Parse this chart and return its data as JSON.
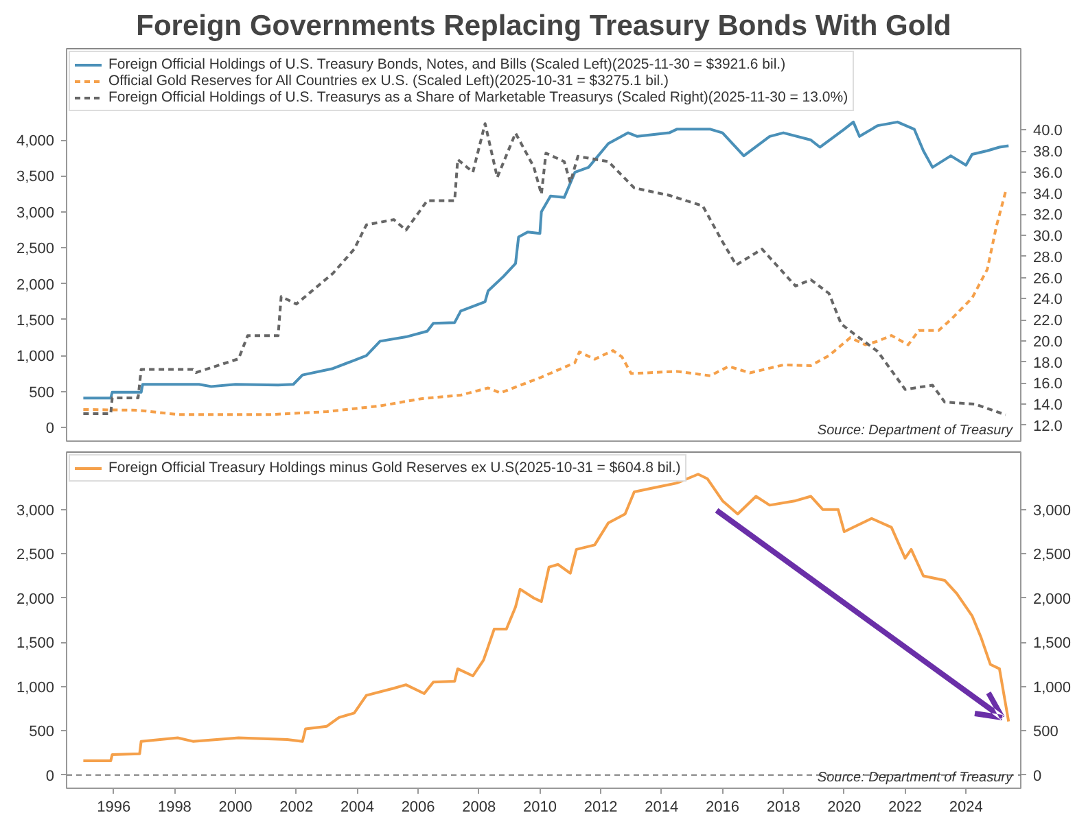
{
  "chart_data": [
    {
      "type": "line",
      "title": "Foreign Governments Replacing Treasury Bonds With Gold",
      "xlim": [
        1994.45,
        2025.8
      ],
      "ylim": [
        -190,
        5270
      ],
      "y2lim": [
        10.5,
        47.7
      ],
      "yticks": [
        0,
        500,
        {
          "value": 1000,
          "label": "1,000"
        },
        {
          "value": 1500,
          "label": "1,500"
        },
        {
          "value": 2000,
          "label": "2,000"
        },
        {
          "value": 2500,
          "label": "2,500"
        },
        {
          "value": 3000,
          "label": "3,000"
        },
        {
          "value": 3500,
          "label": "3,500"
        },
        {
          "value": 4000,
          "label": "4,000"
        }
      ],
      "y2ticks": [
        {
          "value": 12,
          "label": "12.0"
        },
        {
          "value": 14,
          "label": "14.0"
        },
        {
          "value": 16,
          "label": "16.0"
        },
        {
          "value": 18,
          "label": "18.0"
        },
        {
          "value": 20,
          "label": "20.0"
        },
        {
          "value": 22,
          "label": "22.0"
        },
        {
          "value": 24,
          "label": "24.0"
        },
        {
          "value": 26,
          "label": "26.0"
        },
        {
          "value": 28,
          "label": "28.0"
        },
        {
          "value": 30,
          "label": "30.0"
        },
        {
          "value": 32,
          "label": "32.0"
        },
        {
          "value": 34,
          "label": "34.0"
        },
        {
          "value": 36,
          "label": "36.0"
        },
        {
          "value": 38,
          "label": "38.0"
        },
        {
          "value": 40,
          "label": "40.0"
        }
      ],
      "tick_labels": "y",
      "grid": false,
      "legend": "top left",
      "annotations": [
        "Source: Department of Treasury"
      ],
      "series": [
        {
          "name": "Foreign Official Holdings of U.S. Treasury Bonds, Notes, and Bills (Scaled Left)(2025-11-30 = $3921.6 bil.)",
          "color": "#4a90b8",
          "line_style": "solid",
          "x": [
            1995.0,
            1995.9,
            1995.95,
            1996.9,
            1996.95,
            1998.8,
            1999.2,
            2000.0,
            2001.4,
            2001.9,
            2002.2,
            2003.2,
            2004.3,
            2004.75,
            2005.6,
            2006.3,
            2006.5,
            2007.2,
            2007.4,
            2008.2,
            2008.3,
            2008.8,
            2009.2,
            2009.3,
            2009.6,
            2010.0,
            2010.05,
            2010.35,
            2010.8,
            2011.15,
            2011.6,
            2012.25,
            2012.9,
            2013.2,
            2014.25,
            2014.5,
            2015.6,
            2016.0,
            2016.7,
            2017.55,
            2018.0,
            2018.9,
            2019.2,
            2020.0,
            2020.3,
            2020.5,
            2021.1,
            2021.75,
            2022.3,
            2022.6,
            2022.9,
            2023.5,
            2024.0,
            2024.2,
            2024.7,
            2025.1,
            2025.4
          ],
          "values": [
            410,
            410,
            490,
            490,
            600,
            600,
            570,
            600,
            590,
            600,
            730,
            820,
            1000,
            1200,
            1260,
            1340,
            1450,
            1460,
            1620,
            1750,
            1900,
            2100,
            2280,
            2650,
            2720,
            2700,
            3000,
            3220,
            3200,
            3550,
            3620,
            3950,
            4100,
            4050,
            4100,
            4150,
            4150,
            4100,
            3780,
            4050,
            4100,
            4000,
            3900,
            4150,
            4250,
            4050,
            4200,
            4250,
            4150,
            3850,
            3620,
            3780,
            3650,
            3800,
            3850,
            3900,
            3920
          ]
        },
        {
          "name": "Official Gold Reserves for All Countries ex U.S. (Scaled Left)(2025-10-31 = $3275.1 bil.)",
          "color": "#f5a04a",
          "line_style": "dashed",
          "x": [
            1995.0,
            1996.8,
            1998.1,
            2001.2,
            2003.0,
            2004.75,
            2006.1,
            2007.4,
            2008.3,
            2008.7,
            2010.05,
            2011.15,
            2011.3,
            2011.8,
            2012.4,
            2012.7,
            2013.0,
            2014.5,
            2015.6,
            2016.2,
            2016.9,
            2018.0,
            2018.9,
            2019.5,
            2020.2,
            2020.7,
            2021.1,
            2021.55,
            2022.1,
            2022.45,
            2023.1,
            2023.5,
            2024.2,
            2024.7,
            2025.0,
            2025.3
          ],
          "values": [
            250,
            240,
            180,
            180,
            220,
            300,
            400,
            450,
            550,
            480,
            700,
            900,
            1050,
            950,
            1070,
            980,
            750,
            780,
            720,
            850,
            760,
            870,
            860,
            1000,
            1250,
            1150,
            1200,
            1280,
            1150,
            1350,
            1350,
            1500,
            1800,
            2200,
            2800,
            3280
          ]
        },
        {
          "name": "Foreign Official Holdings of U.S. Treasurys as a Share of Marketable Treasurys (Scaled Right)(2025-11-30 = 13.0%)",
          "color": "#666666",
          "line_style": "dashed",
          "axis": "y2",
          "x": [
            1995.0,
            1995.9,
            1995.95,
            1996.8,
            1996.9,
            1998.6,
            1998.7,
            2000.1,
            2000.4,
            2001.4,
            2001.5,
            2002.0,
            2003.2,
            2003.9,
            2004.3,
            2005.2,
            2005.6,
            2006.3,
            2007.2,
            2007.3,
            2007.8,
            2008.2,
            2008.6,
            2009.2,
            2009.8,
            2010.05,
            2010.2,
            2010.8,
            2011.0,
            2011.25,
            2012.25,
            2013.1,
            2014.25,
            2015.35,
            2016.0,
            2016.45,
            2017.3,
            2018.4,
            2018.9,
            2019.5,
            2019.9,
            2020.4,
            2021.1,
            2022.0,
            2022.9,
            2023.3,
            2024.3,
            2025.3
          ],
          "values": [
            13.1,
            13.1,
            14.6,
            14.6,
            17.3,
            17.3,
            17.0,
            18.3,
            20.5,
            20.5,
            24.2,
            23.5,
            26.4,
            28.7,
            31.0,
            31.5,
            30.5,
            33.3,
            33.3,
            37.2,
            36.0,
            40.6,
            35.5,
            39.7,
            36.5,
            33.9,
            37.8,
            37.0,
            35.0,
            37.5,
            37.0,
            34.5,
            33.8,
            32.8,
            29.4,
            27.2,
            28.7,
            25.2,
            25.8,
            24.5,
            21.6,
            20.5,
            19.0,
            15.4,
            15.8,
            14.2,
            14.0,
            13.0
          ]
        }
      ]
    },
    {
      "type": "line",
      "xlim": [
        1994.45,
        2025.8
      ],
      "ylim": [
        -150,
        3650
      ],
      "xticks": [
        1996,
        1998,
        2000,
        2002,
        2004,
        2006,
        2008,
        2010,
        2012,
        2014,
        2016,
        2018,
        2020,
        2022,
        2024
      ],
      "yticks": [
        0,
        500,
        {
          "value": 1000,
          "label": "1,000"
        },
        {
          "value": 1500,
          "label": "1,500"
        },
        {
          "value": 2000,
          "label": "2,000"
        },
        {
          "value": 2500,
          "label": "2,500"
        },
        {
          "value": 3000,
          "label": "3,000"
        }
      ],
      "y2lim": [
        -150,
        3650
      ],
      "y2ticks": [
        0,
        500,
        {
          "value": 1000,
          "label": "1,000"
        },
        {
          "value": 1500,
          "label": "1,500"
        },
        {
          "value": 2000,
          "label": "2,000"
        },
        {
          "value": 2500,
          "label": "2,500"
        },
        {
          "value": 3000,
          "label": "3,000"
        }
      ],
      "grid": false,
      "legend": "top left",
      "ref_lines": [
        {
          "axis": "y",
          "value": 0,
          "color": "#777777",
          "line_style": "dashed"
        }
      ],
      "annotations": [
        "Source: Department of Treasury"
      ],
      "series": [
        {
          "name": "Foreign Official Treasury Holdings minus Gold Reserves ex U.S(2025-10-31 = $604.8 bil.)",
          "color": "#f5a04a",
          "line_style": "solid",
          "x": [
            1995.0,
            1995.9,
            1995.95,
            1996.85,
            1996.9,
            1998.1,
            1998.6,
            2000.1,
            2001.7,
            2002.2,
            2002.3,
            2003.0,
            2003.4,
            2003.9,
            2004.3,
            2005.2,
            2005.6,
            2006.2,
            2006.5,
            2007.2,
            2007.3,
            2007.8,
            2008.15,
            2008.5,
            2008.9,
            2009.2,
            2009.35,
            2009.8,
            2010.05,
            2010.3,
            2010.6,
            2011.0,
            2011.2,
            2011.8,
            2012.25,
            2012.8,
            2013.1,
            2013.8,
            2014.5,
            2015.2,
            2015.5,
            2016.0,
            2016.5,
            2017.1,
            2017.55,
            2018.4,
            2018.9,
            2019.3,
            2019.8,
            2020.0,
            2020.9,
            2021.55,
            2022.0,
            2022.2,
            2022.6,
            2023.3,
            2023.7,
            2024.2,
            2024.5,
            2024.8,
            2025.1,
            2025.4
          ],
          "values": [
            160,
            160,
            230,
            240,
            380,
            420,
            380,
            420,
            400,
            380,
            520,
            550,
            650,
            700,
            900,
            980,
            1020,
            920,
            1050,
            1060,
            1200,
            1120,
            1300,
            1650,
            1650,
            1900,
            2100,
            2000,
            1960,
            2350,
            2380,
            2280,
            2550,
            2600,
            2850,
            2950,
            3200,
            3250,
            3300,
            3400,
            3350,
            3100,
            2950,
            3150,
            3050,
            3100,
            3150,
            3000,
            3000,
            2750,
            2900,
            2800,
            2450,
            2550,
            2250,
            2200,
            2050,
            1800,
            1550,
            1250,
            1200,
            605
          ]
        }
      ]
    }
  ]
}
